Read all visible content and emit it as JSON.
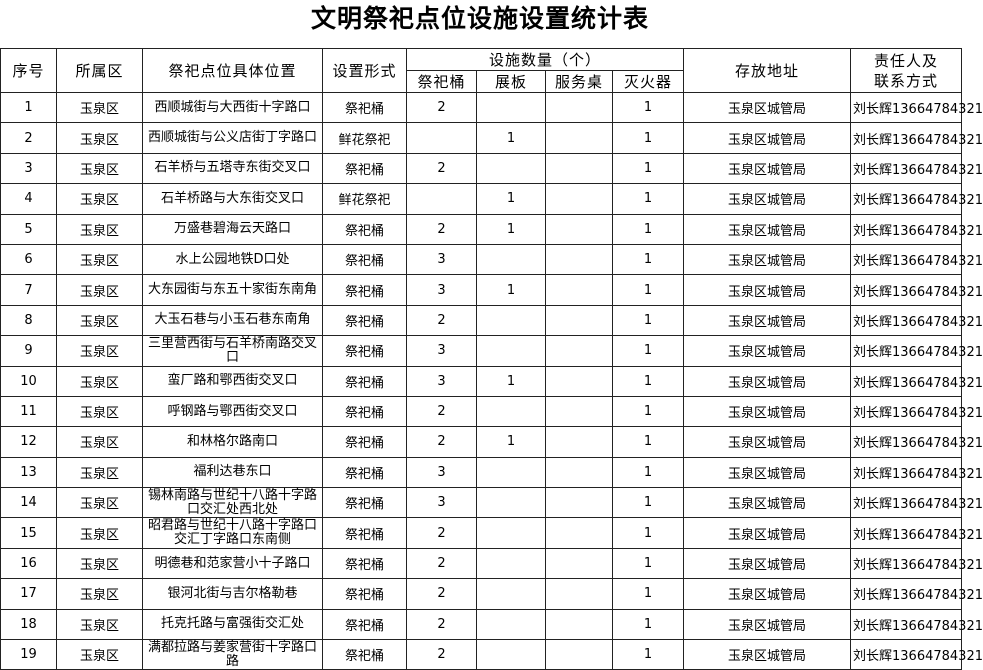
{
  "title": "文明祭祀点位设施设置统计表",
  "headers": {
    "seq": "序号",
    "district": "所属区",
    "location": "祭祀点位具体位置",
    "form": "设置形式",
    "facilities": "设施数量（个）",
    "bucket": "祭祀桶",
    "board": "展板",
    "desk": "服务桌",
    "extinguisher": "灭火器",
    "storage": "存放地址",
    "person_line1": "责任人及",
    "person_line2": "联系方式"
  },
  "rows": [
    {
      "seq": "1",
      "district": "玉泉区",
      "location": "西顺城街与大西街十字路口",
      "form": "祭祀桶",
      "bucket": "2",
      "board": "",
      "desk": "",
      "ext": "1",
      "storage": "玉泉区城管局",
      "person": "刘长辉13664784321"
    },
    {
      "seq": "2",
      "district": "玉泉区",
      "location": "西顺城街与公义店街丁字路口",
      "form": "鲜花祭祀",
      "bucket": "",
      "board": "1",
      "desk": "",
      "ext": "1",
      "storage": "玉泉区城管局",
      "person": "刘长辉13664784321"
    },
    {
      "seq": "3",
      "district": "玉泉区",
      "location": "石羊桥与五塔寺东街交叉口",
      "form": "祭祀桶",
      "bucket": "2",
      "board": "",
      "desk": "",
      "ext": "1",
      "storage": "玉泉区城管局",
      "person": "刘长辉13664784321"
    },
    {
      "seq": "4",
      "district": "玉泉区",
      "location": "石羊桥路与大东街交叉口",
      "form": "鲜花祭祀",
      "bucket": "",
      "board": "1",
      "desk": "",
      "ext": "1",
      "storage": "玉泉区城管局",
      "person": "刘长辉13664784321"
    },
    {
      "seq": "5",
      "district": "玉泉区",
      "location": "万盛巷碧海云天路口",
      "form": "祭祀桶",
      "bucket": "2",
      "board": "1",
      "desk": "",
      "ext": "1",
      "storage": "玉泉区城管局",
      "person": "刘长辉13664784321"
    },
    {
      "seq": "6",
      "district": "玉泉区",
      "location": "水上公园地铁D口处",
      "form": "祭祀桶",
      "bucket": "3",
      "board": "",
      "desk": "",
      "ext": "1",
      "storage": "玉泉区城管局",
      "person": "刘长辉13664784321"
    },
    {
      "seq": "7",
      "district": "玉泉区",
      "location": "大东园街与东五十家街东南角",
      "form": "祭祀桶",
      "bucket": "3",
      "board": "1",
      "desk": "",
      "ext": "1",
      "storage": "玉泉区城管局",
      "person": "刘长辉13664784321"
    },
    {
      "seq": "8",
      "district": "玉泉区",
      "location": "大玉石巷与小玉石巷东南角",
      "form": "祭祀桶",
      "bucket": "2",
      "board": "",
      "desk": "",
      "ext": "1",
      "storage": "玉泉区城管局",
      "person": "刘长辉13664784321"
    },
    {
      "seq": "9",
      "district": "玉泉区",
      "location": "三里营西街与石羊桥南路交叉口",
      "form": "祭祀桶",
      "bucket": "3",
      "board": "",
      "desk": "",
      "ext": "1",
      "storage": "玉泉区城管局",
      "person": "刘长辉13664784321"
    },
    {
      "seq": "10",
      "district": "玉泉区",
      "location": "蛮厂路和鄂西街交叉口",
      "form": "祭祀桶",
      "bucket": "3",
      "board": "1",
      "desk": "",
      "ext": "1",
      "storage": "玉泉区城管局",
      "person": "刘长辉13664784321"
    },
    {
      "seq": "11",
      "district": "玉泉区",
      "location": "呼钢路与鄂西街交叉口",
      "form": "祭祀桶",
      "bucket": "2",
      "board": "",
      "desk": "",
      "ext": "1",
      "storage": "玉泉区城管局",
      "person": "刘长辉13664784321"
    },
    {
      "seq": "12",
      "district": "玉泉区",
      "location": "和林格尔路南口",
      "form": "祭祀桶",
      "bucket": "2",
      "board": "1",
      "desk": "",
      "ext": "1",
      "storage": "玉泉区城管局",
      "person": "刘长辉13664784321"
    },
    {
      "seq": "13",
      "district": "玉泉区",
      "location": "福利达巷东口",
      "form": "祭祀桶",
      "bucket": "3",
      "board": "",
      "desk": "",
      "ext": "1",
      "storage": "玉泉区城管局",
      "person": "刘长辉13664784321"
    },
    {
      "seq": "14",
      "district": "玉泉区",
      "location": "锡林南路与世纪十八路十字路口交汇处西北处",
      "form": "祭祀桶",
      "bucket": "3",
      "board": "",
      "desk": "",
      "ext": "1",
      "storage": "玉泉区城管局",
      "person": "刘长辉13664784321"
    },
    {
      "seq": "15",
      "district": "玉泉区",
      "location": "昭君路与世纪十八路十字路口交汇丁字路口东南侧",
      "form": "祭祀桶",
      "bucket": "2",
      "board": "",
      "desk": "",
      "ext": "1",
      "storage": "玉泉区城管局",
      "person": "刘长辉13664784321"
    },
    {
      "seq": "16",
      "district": "玉泉区",
      "location": "明德巷和范家营小十子路口",
      "form": "祭祀桶",
      "bucket": "2",
      "board": "",
      "desk": "",
      "ext": "1",
      "storage": "玉泉区城管局",
      "person": "刘长辉13664784321"
    },
    {
      "seq": "17",
      "district": "玉泉区",
      "location": "银河北街与吉尔格勒巷",
      "form": "祭祀桶",
      "bucket": "2",
      "board": "",
      "desk": "",
      "ext": "1",
      "storage": "玉泉区城管局",
      "person": "刘长辉13664784321"
    },
    {
      "seq": "18",
      "district": "玉泉区",
      "location": "托克托路与富强街交汇处",
      "form": "祭祀桶",
      "bucket": "2",
      "board": "",
      "desk": "",
      "ext": "1",
      "storage": "玉泉区城管局",
      "person": "刘长辉13664784321"
    },
    {
      "seq": "19",
      "district": "玉泉区",
      "location": "满都拉路与姜家营街十字路口路",
      "form": "祭祀桶",
      "bucket": "2",
      "board": "",
      "desk": "",
      "ext": "1",
      "storage": "玉泉区城管局",
      "person": "刘长辉13664784321"
    }
  ]
}
